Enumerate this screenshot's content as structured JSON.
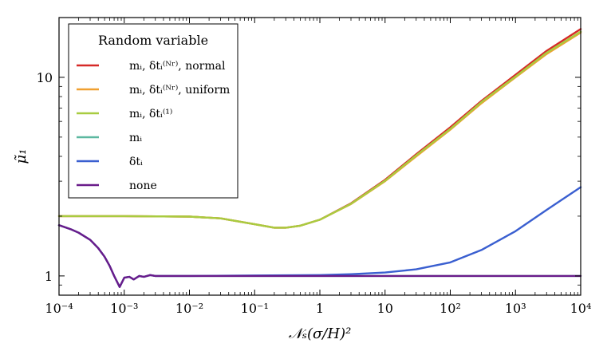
{
  "chart_data": {
    "type": "line",
    "title": "",
    "xlabel": "𝒩ₛ(σ/H)²",
    "ylabel": "μ̃₁",
    "xscale": "log",
    "yscale": "log",
    "xlim": [
      0.0001,
      10000
    ],
    "ylim": [
      0.8,
      20
    ],
    "grid": false,
    "x_ticks": [
      {
        "value": 0.0001,
        "label": "10⁻⁴"
      },
      {
        "value": 0.001,
        "label": "10⁻³"
      },
      {
        "value": 0.01,
        "label": "10⁻²"
      },
      {
        "value": 0.1,
        "label": "10⁻¹"
      },
      {
        "value": 1,
        "label": "1"
      },
      {
        "value": 10,
        "label": "10"
      },
      {
        "value": 100,
        "label": "10²"
      },
      {
        "value": 1000,
        "label": "10³"
      },
      {
        "value": 10000,
        "label": "10⁴"
      }
    ],
    "y_ticks": [
      {
        "value": 1,
        "label": "1"
      },
      {
        "value": 10,
        "label": "10"
      }
    ],
    "legend": {
      "title": "Random variable",
      "position": "top-left"
    },
    "series": [
      {
        "name": "mᵢ, δtᵢ⁽ᴺʳ⁾, normal",
        "color": "#d62a28",
        "x": [
          0.0001,
          0.001,
          0.01,
          0.03,
          0.1,
          0.2,
          0.3,
          0.5,
          1,
          3,
          10,
          30,
          100,
          300,
          1000,
          3000,
          10000
        ],
        "y": [
          2.0,
          2.0,
          1.99,
          1.95,
          1.82,
          1.75,
          1.75,
          1.79,
          1.92,
          2.32,
          3.05,
          4.1,
          5.6,
          7.6,
          10.3,
          13.6,
          17.5
        ]
      },
      {
        "name": "mᵢ, δtᵢ⁽ᴺʳ⁾, uniform",
        "color": "#f0a030",
        "x": [
          0.0001,
          0.001,
          0.01,
          0.03,
          0.1,
          0.2,
          0.3,
          0.5,
          1,
          3,
          10,
          30,
          100,
          300,
          1000,
          3000,
          10000
        ],
        "y": [
          2.0,
          2.0,
          1.99,
          1.95,
          1.82,
          1.75,
          1.75,
          1.79,
          1.92,
          2.3,
          3.0,
          4.0,
          5.45,
          7.4,
          10.0,
          13.1,
          16.8
        ]
      },
      {
        "name": "mᵢ, δtᵢ⁽¹⁾",
        "color": "#a8cc40",
        "x": [
          0.0001,
          0.001,
          0.01,
          0.03,
          0.1,
          0.2,
          0.3,
          0.5,
          1,
          3,
          10,
          30,
          100,
          300,
          1000,
          3000,
          10000
        ],
        "y": [
          2.0,
          2.0,
          1.99,
          1.95,
          1.82,
          1.75,
          1.75,
          1.79,
          1.92,
          2.31,
          3.02,
          4.05,
          5.5,
          7.5,
          10.1,
          13.3,
          17.0
        ]
      },
      {
        "name": "mᵢ",
        "color": "#5cb8a0",
        "x": [
          0.0001,
          0.00015,
          0.0002,
          0.0003,
          0.0004,
          0.0005,
          0.0006,
          0.0007,
          0.00085,
          0.001,
          0.0012,
          0.0014,
          0.0017,
          0.002,
          0.0025,
          0.003,
          0.005,
          0.01,
          0.1,
          1,
          10,
          100,
          1000,
          10000
        ],
        "y": [
          1.8,
          1.72,
          1.65,
          1.52,
          1.38,
          1.25,
          1.12,
          1.0,
          0.88,
          0.98,
          0.99,
          0.96,
          1.0,
          0.99,
          1.01,
          1.0,
          1.0,
          1.0,
          1.0,
          1.0,
          1.0,
          1.0,
          1.0,
          1.0
        ]
      },
      {
        "name": "δtᵢ",
        "color": "#3a5fd0",
        "x": [
          0.0001,
          0.00015,
          0.0002,
          0.0003,
          0.0004,
          0.0005,
          0.0006,
          0.0007,
          0.00085,
          0.001,
          0.0012,
          0.0014,
          0.0017,
          0.002,
          0.0025,
          0.003,
          0.005,
          0.01,
          0.1,
          1,
          3,
          10,
          30,
          100,
          300,
          1000,
          3000,
          10000
        ],
        "y": [
          1.8,
          1.72,
          1.65,
          1.52,
          1.38,
          1.25,
          1.12,
          1.0,
          0.88,
          0.98,
          0.99,
          0.96,
          1.0,
          0.99,
          1.01,
          1.0,
          1.0,
          1.0,
          1.005,
          1.01,
          1.02,
          1.04,
          1.08,
          1.17,
          1.35,
          1.68,
          2.15,
          2.8
        ]
      },
      {
        "name": "none",
        "color": "#6a1b8a",
        "x": [
          0.0001,
          0.00015,
          0.0002,
          0.0003,
          0.0004,
          0.0005,
          0.0006,
          0.0007,
          0.00085,
          0.001,
          0.0012,
          0.0014,
          0.0017,
          0.002,
          0.0025,
          0.003,
          0.005,
          0.01,
          0.1,
          1,
          10,
          100,
          1000,
          10000
        ],
        "y": [
          1.8,
          1.72,
          1.65,
          1.52,
          1.38,
          1.25,
          1.12,
          1.0,
          0.88,
          0.98,
          0.99,
          0.96,
          1.0,
          0.99,
          1.01,
          1.0,
          1.0,
          1.0,
          1.0,
          1.0,
          1.0,
          1.0,
          1.0,
          1.0
        ]
      }
    ]
  }
}
